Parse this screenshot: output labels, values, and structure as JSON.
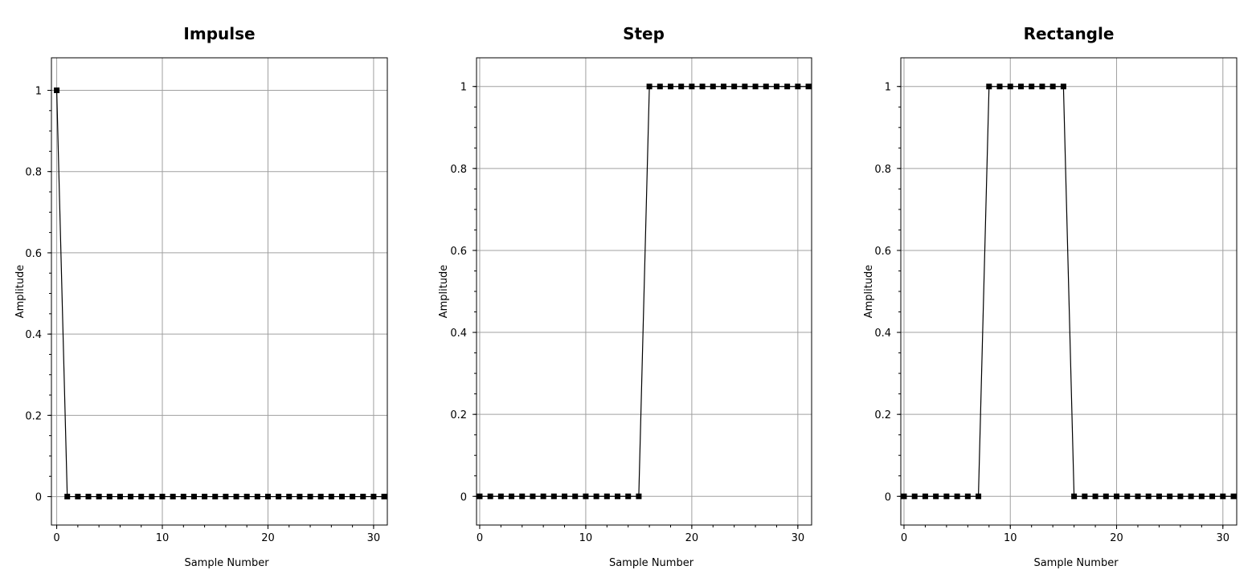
{
  "chart_data": [
    {
      "type": "line",
      "title": "Impulse",
      "xlabel": "Sample Number",
      "ylabel": "Amplitude",
      "xlim": [
        -0.5,
        31.3
      ],
      "ylim": [
        -0.07,
        1.08
      ],
      "x_ticks": [
        "0",
        "10",
        "20",
        "30"
      ],
      "y_ticks": [
        "0",
        "0.2",
        "0.4",
        "0.6",
        "0.8",
        "1"
      ],
      "grid": true,
      "x": [
        0,
        1,
        2,
        3,
        4,
        5,
        6,
        7,
        8,
        9,
        10,
        11,
        12,
        13,
        14,
        15,
        16,
        17,
        18,
        19,
        20,
        21,
        22,
        23,
        24,
        25,
        26,
        27,
        28,
        29,
        30,
        31
      ],
      "values": [
        1,
        0,
        0,
        0,
        0,
        0,
        0,
        0,
        0,
        0,
        0,
        0,
        0,
        0,
        0,
        0,
        0,
        0,
        0,
        0,
        0,
        0,
        0,
        0,
        0,
        0,
        0,
        0,
        0,
        0,
        0,
        0
      ]
    },
    {
      "type": "line",
      "title": "Step",
      "xlabel": "Sample Number",
      "ylabel": "Amplitude",
      "xlim": [
        -0.3,
        31.3
      ],
      "ylim": [
        -0.07,
        1.07
      ],
      "x_ticks": [
        "0",
        "10",
        "20",
        "30"
      ],
      "y_ticks": [
        "0",
        "0.2",
        "0.4",
        "0.6",
        "0.8",
        "1"
      ],
      "grid": true,
      "x": [
        0,
        1,
        2,
        3,
        4,
        5,
        6,
        7,
        8,
        9,
        10,
        11,
        12,
        13,
        14,
        15,
        16,
        17,
        18,
        19,
        20,
        21,
        22,
        23,
        24,
        25,
        26,
        27,
        28,
        29,
        30,
        31
      ],
      "values": [
        0,
        0,
        0,
        0,
        0,
        0,
        0,
        0,
        0,
        0,
        0,
        0,
        0,
        0,
        0,
        0,
        1,
        1,
        1,
        1,
        1,
        1,
        1,
        1,
        1,
        1,
        1,
        1,
        1,
        1,
        1,
        1
      ]
    },
    {
      "type": "line",
      "title": "Rectangle",
      "xlabel": "Sample Number",
      "ylabel": "Amplitude",
      "xlim": [
        -0.3,
        31.3
      ],
      "ylim": [
        -0.07,
        1.07
      ],
      "x_ticks": [
        "0",
        "10",
        "20",
        "30"
      ],
      "y_ticks": [
        "0",
        "0.2",
        "0.4",
        "0.6",
        "0.8",
        "1"
      ],
      "grid": true,
      "x": [
        0,
        1,
        2,
        3,
        4,
        5,
        6,
        7,
        8,
        9,
        10,
        11,
        12,
        13,
        14,
        15,
        16,
        17,
        18,
        19,
        20,
        21,
        22,
        23,
        24,
        25,
        26,
        27,
        28,
        29,
        30,
        31
      ],
      "values": [
        0,
        0,
        0,
        0,
        0,
        0,
        0,
        0,
        1,
        1,
        1,
        1,
        1,
        1,
        1,
        1,
        0,
        0,
        0,
        0,
        0,
        0,
        0,
        0,
        0,
        0,
        0,
        0,
        0,
        0,
        0,
        0
      ]
    }
  ]
}
